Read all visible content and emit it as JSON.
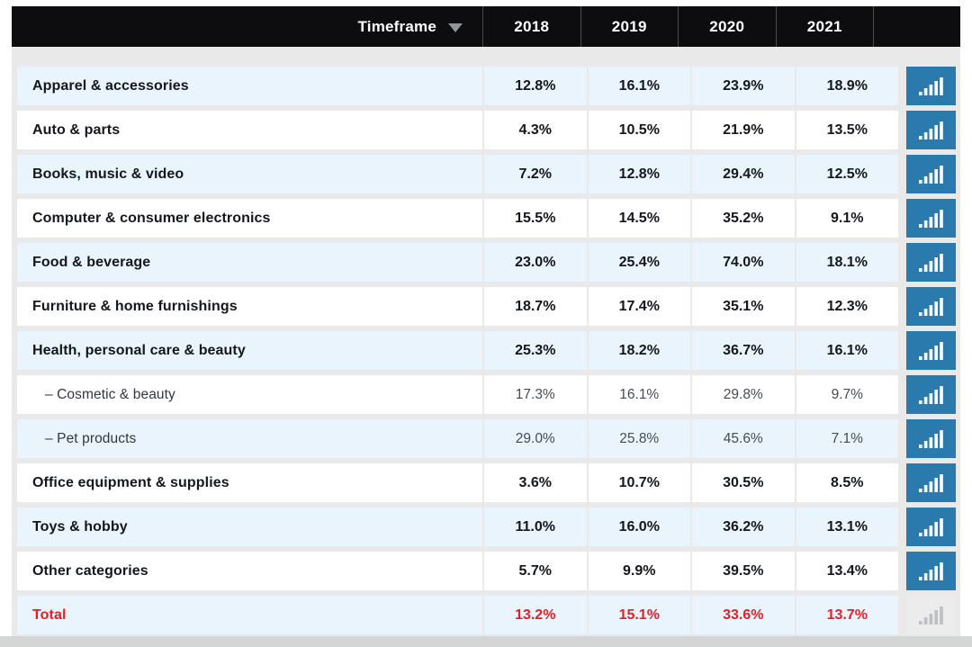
{
  "header": {
    "filter_label": "Timeframe"
  },
  "icons": {
    "dropdown": "triangle-down",
    "row_action": "bar-chart"
  },
  "colors": {
    "header_bg": "#0d0d0f",
    "header_divider": "#4a4a4a",
    "widget_bg": "#e9e9e9",
    "row_alt_blue": "#e9f4fc",
    "row_white": "#ffffff",
    "accent_blue": "#2b7aad",
    "total_red": "#ed1c24",
    "disabled_btn_bg": "#ececec",
    "disabled_btn_bar": "#bcc0c4",
    "caret": "#8f9296"
  },
  "chart_data": {
    "type": "table",
    "columns": [
      "2018",
      "2019",
      "2020",
      "2021"
    ],
    "unit": "%",
    "legend_position": "none",
    "rows": [
      {
        "label": "Apparel & accessories",
        "style": "category",
        "values": [
          "12.8%",
          "16.1%",
          "23.9%",
          "18.9%"
        ],
        "chart_button": true
      },
      {
        "label": "Auto & parts",
        "style": "category",
        "values": [
          "4.3%",
          "10.5%",
          "21.9%",
          "13.5%"
        ],
        "chart_button": true
      },
      {
        "label": "Books, music & video",
        "style": "category",
        "values": [
          "7.2%",
          "12.8%",
          "29.4%",
          "12.5%"
        ],
        "chart_button": true
      },
      {
        "label": "Computer & consumer electronics",
        "style": "category",
        "values": [
          "15.5%",
          "14.5%",
          "35.2%",
          "9.1%"
        ],
        "chart_button": true
      },
      {
        "label": "Food & beverage",
        "style": "category",
        "values": [
          "23.0%",
          "25.4%",
          "74.0%",
          "18.1%"
        ],
        "chart_button": true
      },
      {
        "label": "Furniture & home furnishings",
        "style": "category",
        "values": [
          "18.7%",
          "17.4%",
          "35.1%",
          "12.3%"
        ],
        "chart_button": true
      },
      {
        "label": "Health, personal care & beauty",
        "style": "category",
        "values": [
          "25.3%",
          "18.2%",
          "36.7%",
          "16.1%"
        ],
        "chart_button": true
      },
      {
        "label": "– Cosmetic & beauty",
        "style": "subcategory",
        "values": [
          "17.3%",
          "16.1%",
          "29.8%",
          "9.7%"
        ],
        "chart_button": true
      },
      {
        "label": "– Pet products",
        "style": "subcategory",
        "values": [
          "29.0%",
          "25.8%",
          "45.6%",
          "7.1%"
        ],
        "chart_button": true
      },
      {
        "label": "Office equipment & supplies",
        "style": "category",
        "values": [
          "3.6%",
          "10.7%",
          "30.5%",
          "8.5%"
        ],
        "chart_button": true
      },
      {
        "label": "Toys & hobby",
        "style": "category",
        "values": [
          "11.0%",
          "16.0%",
          "36.2%",
          "13.1%"
        ],
        "chart_button": true
      },
      {
        "label": "Other categories",
        "style": "category",
        "values": [
          "5.7%",
          "9.9%",
          "39.5%",
          "13.4%"
        ],
        "chart_button": true
      },
      {
        "label": "Total",
        "style": "total",
        "values": [
          "13.2%",
          "15.1%",
          "33.6%",
          "13.7%"
        ],
        "chart_button": false
      }
    ]
  }
}
